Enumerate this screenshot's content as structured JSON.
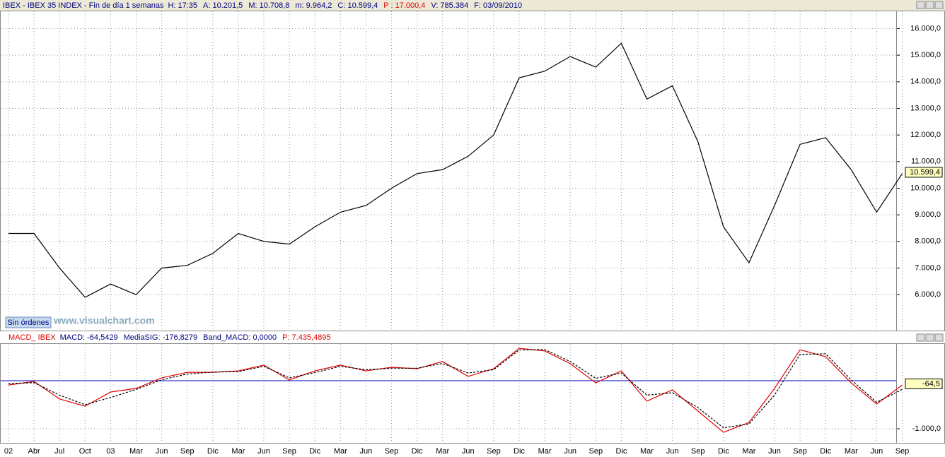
{
  "chart_data": [
    {
      "type": "line",
      "title": "IBEX - IBEX 35 INDEX - Fin de día 1 semanas",
      "info": [
        {
          "text": "H: 17:35",
          "color": "#000080"
        },
        {
          "text": "A: 10.201,5",
          "color": "#000080"
        },
        {
          "text": "M: 10.708,8",
          "color": "#000080"
        },
        {
          "text": "m: 9.964,2",
          "color": "#000080"
        },
        {
          "text": "C: 10.599,4",
          "color": "#000080"
        },
        {
          "text": "P : 17.000,4",
          "color": "#e00000"
        },
        {
          "text": "V: 785.384",
          "color": "#000080"
        },
        {
          "text": "F: 03/09/2010",
          "color": "#000080"
        }
      ],
      "series": [
        {
          "color": "#000000",
          "values": [
            8300,
            8300,
            7000,
            5900,
            6400,
            6000,
            7000,
            7100,
            7550,
            8300,
            8000,
            7900,
            8550,
            9100,
            9350,
            10000,
            10550,
            10700,
            11200,
            12000,
            14150,
            14400,
            14950,
            14550,
            15450,
            13350,
            13850,
            11750,
            8550,
            7200,
            9350,
            11650,
            11900,
            10700,
            9100,
            10550
          ]
        }
      ],
      "current": {
        "value": 10599.4,
        "label": "10.599,4"
      },
      "ylim": [
        4650,
        16650
      ],
      "yticks": [
        {
          "value": 6000,
          "label": "6.000,0"
        },
        {
          "value": 7000,
          "label": "7.000,0"
        },
        {
          "value": 8000,
          "label": "8.000,0"
        },
        {
          "value": 9000,
          "label": "9.000,0"
        },
        {
          "value": 10000,
          "label": "10.000,0"
        },
        {
          "value": 11000,
          "label": "11.000,0"
        },
        {
          "value": 12000,
          "label": "12.000,0"
        },
        {
          "value": 13000,
          "label": "13.000,0"
        },
        {
          "value": 14000,
          "label": "14.000,0"
        },
        {
          "value": 15000,
          "label": "15.000,0"
        },
        {
          "value": 16000,
          "label": "16.000,0"
        }
      ],
      "grid": true,
      "button": "Sin órdenes",
      "watermark": "www.visualchart.com"
    },
    {
      "type": "line",
      "title": "MACD_ IBEX",
      "info": [
        {
          "text": "MACD: -64,5429",
          "color": "#000080"
        },
        {
          "text": "MediaSIG: -176,8279",
          "color": "#000080"
        },
        {
          "text": "Band_MACD: 0,0000",
          "color": "#000080"
        },
        {
          "text": "P: 7.435,4895",
          "color": "#e00000"
        }
      ],
      "categories": [
        "02",
        "Abr",
        "Jul",
        "Oct",
        "03",
        "Mar",
        "Jun",
        "Sep",
        "Dic",
        "Mar",
        "Jun",
        "Sep",
        "Dic",
        "Mar",
        "Jun",
        "Sep",
        "Dic",
        "Mar",
        "Jun",
        "Sep",
        "Dic",
        "Mar",
        "Jun",
        "Sep",
        "Dic",
        "Mar",
        "Jun",
        "Sep",
        "Dic",
        "Mar",
        "Jun",
        "Sep",
        "Dic",
        "Mar",
        "Jun",
        "Sep"
      ],
      "series": [
        {
          "color": "#e00000",
          "dashed": false,
          "values": [
            -90,
            -15,
            -380,
            -530,
            -235,
            -160,
            60,
            175,
            175,
            205,
            325,
            15,
            205,
            325,
            205,
            280,
            250,
            400,
            90,
            250,
            675,
            620,
            355,
            -45,
            205,
            -425,
            -190,
            -630,
            -1075,
            -870,
            -160,
            645,
            500,
            -45,
            -485,
            -90
          ]
        },
        {
          "color": "#000000",
          "dashed": true,
          "values": [
            -60,
            -40,
            -300,
            -500,
            -350,
            -180,
            20,
            140,
            180,
            190,
            300,
            60,
            170,
            300,
            230,
            260,
            260,
            360,
            160,
            230,
            640,
            650,
            400,
            50,
            160,
            -300,
            -250,
            -560,
            -980,
            -900,
            -300,
            550,
            560,
            20,
            -450,
            -180
          ]
        }
      ],
      "band": {
        "value": 0,
        "color": "#0000c0"
      },
      "current": {
        "value": -64.5,
        "label": "-64,5"
      },
      "ylim": [
        -1294,
        765
      ],
      "yticks": [
        {
          "value": -1000,
          "label": "-1.000,0"
        }
      ],
      "grid": true
    }
  ]
}
